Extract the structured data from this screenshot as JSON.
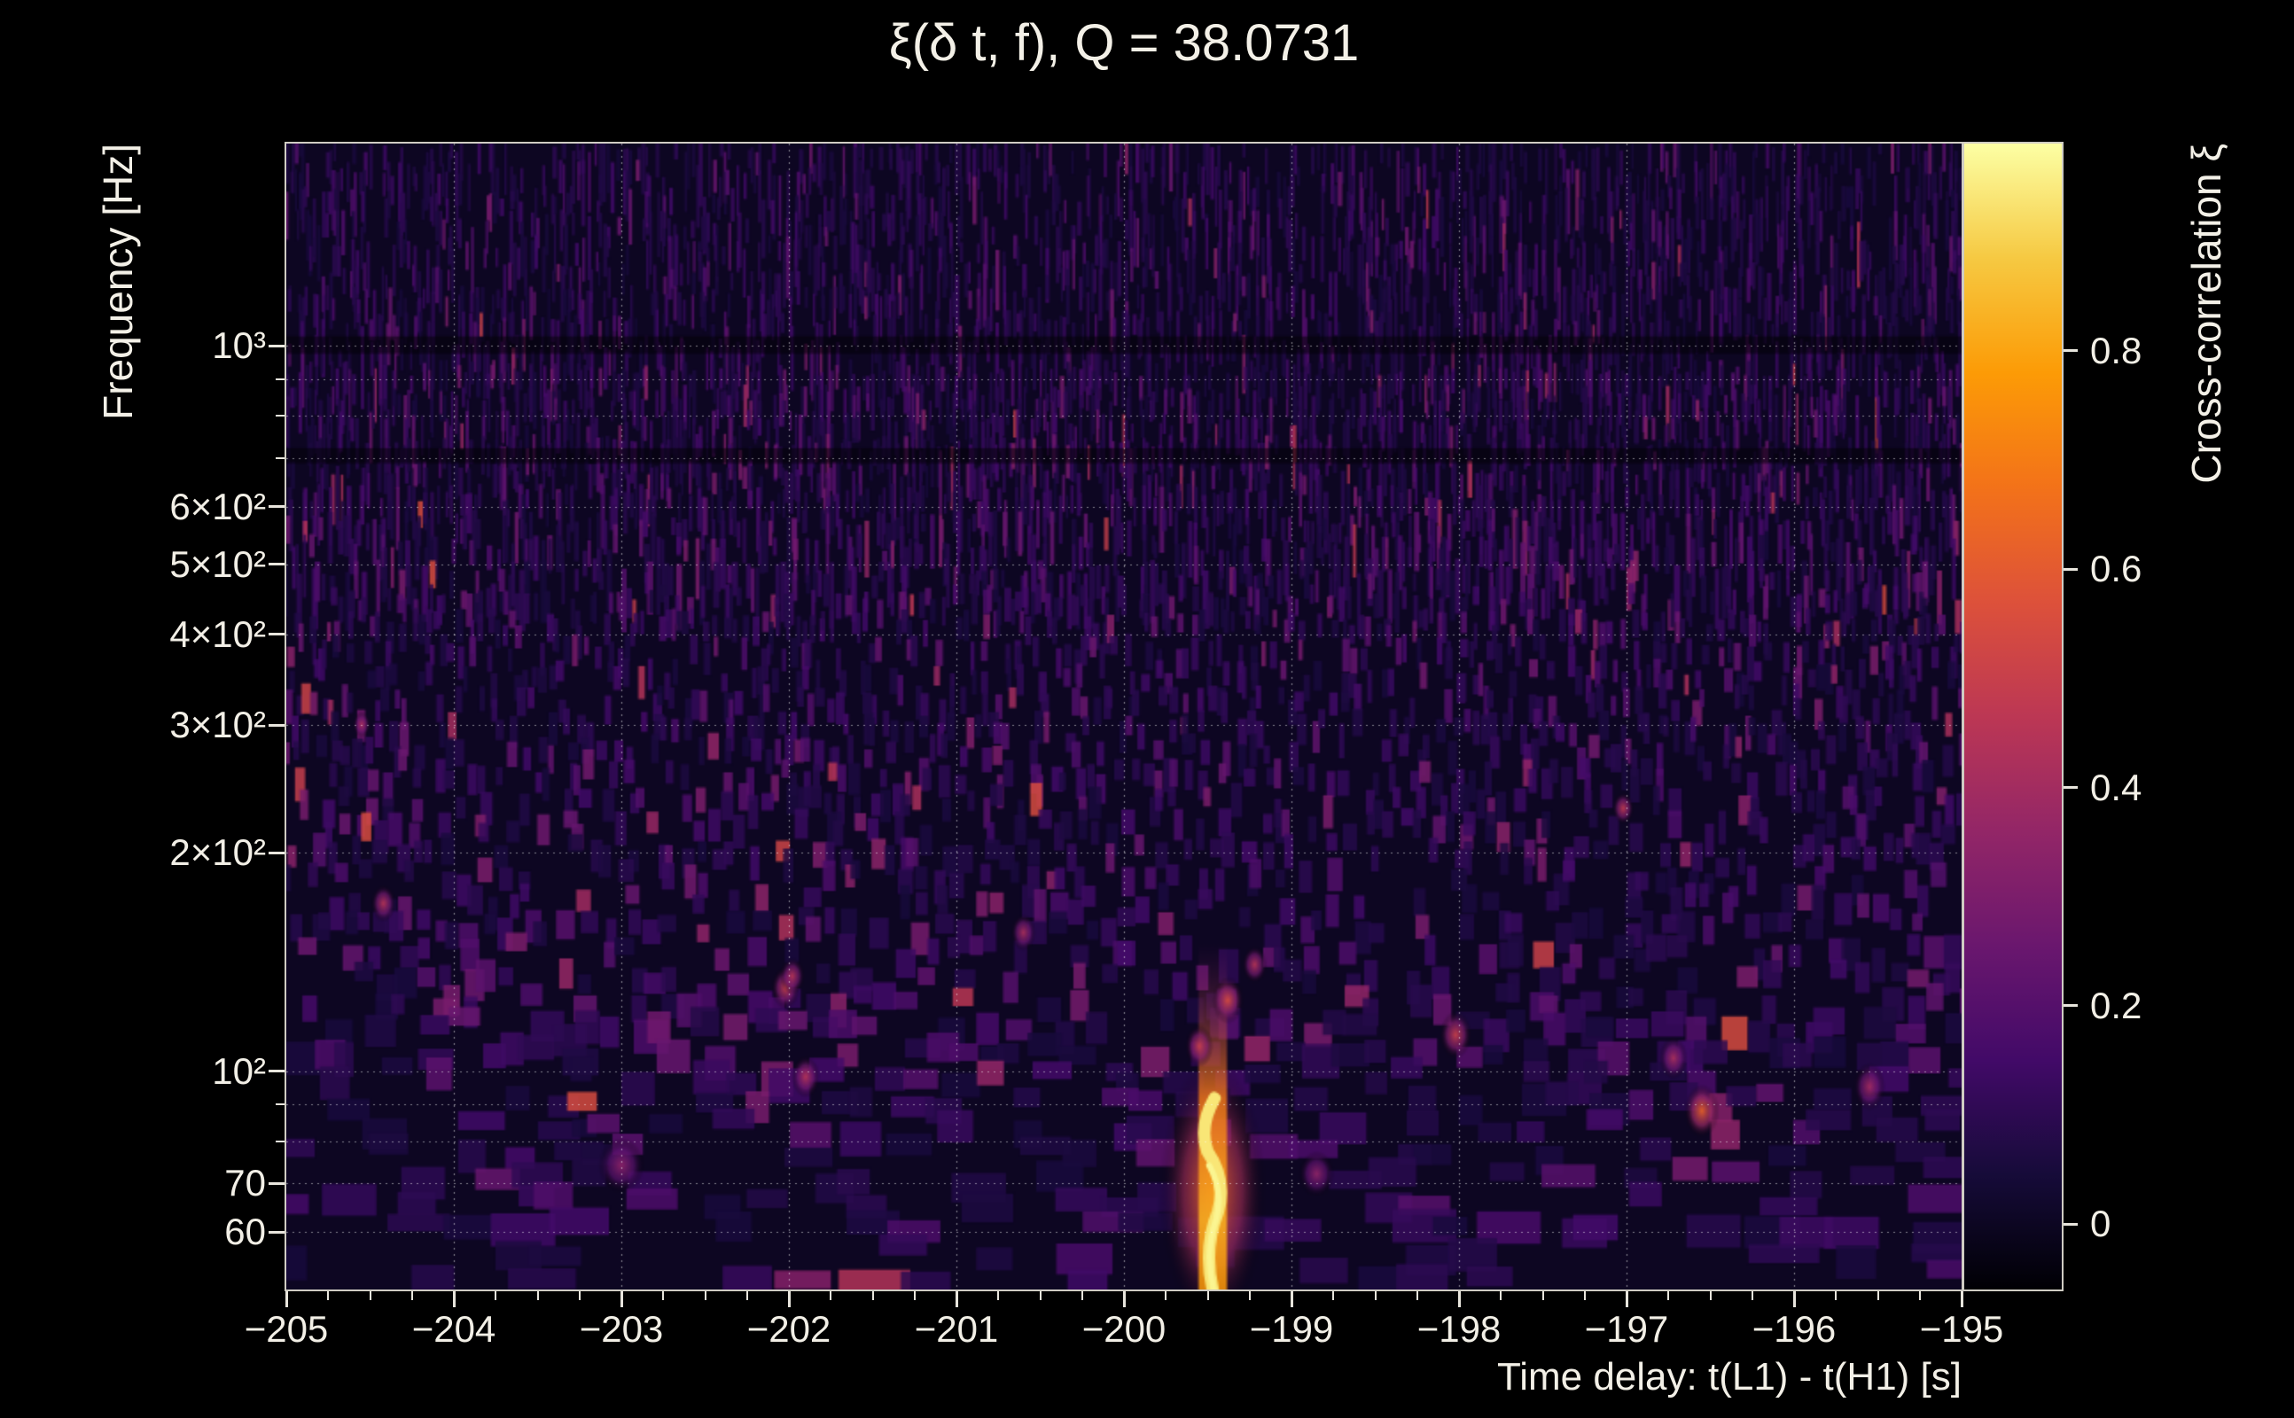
{
  "title": "ξ(δ t, f), Q = 38.0731",
  "axes": {
    "x": {
      "label": "Time delay: t(L1) - t(H1) [s]",
      "min": -205,
      "max": -195,
      "minor_step": 0.25,
      "ticks": [
        -205,
        -204,
        -203,
        -202,
        -201,
        -200,
        -199,
        -198,
        -197,
        -196,
        -195
      ],
      "tick_labels": [
        "−205",
        "−204",
        "−203",
        "−202",
        "−201",
        "−200",
        "−199",
        "−198",
        "−197",
        "−196",
        "−195"
      ]
    },
    "y": {
      "label": "Frequency [Hz]",
      "scale": "log",
      "min": 50,
      "max": 1900,
      "ticks": [
        1000,
        600,
        500,
        400,
        300,
        200,
        100,
        70,
        60
      ],
      "tick_labels": [
        "10³",
        "6×10²",
        "5×10²",
        "4×10²",
        "3×10²",
        "2×10²",
        "10²",
        "70",
        "60"
      ],
      "minor_ticks": [
        80,
        90,
        700,
        800,
        900
      ]
    }
  },
  "colorbar": {
    "label": "Cross-correlation ξ",
    "min": -0.06,
    "max": 0.99,
    "ticks": [
      0,
      0.2,
      0.4,
      0.6,
      0.8
    ],
    "tick_labels": [
      "0",
      "0.2",
      "0.4",
      "0.6",
      "0.8"
    ]
  },
  "chart_data": {
    "type": "heatmap",
    "title": "ξ(δ t, f), Q = 38.0731",
    "q_value": 38.0731,
    "xlabel": "Time delay: t(L1) - t(H1) [s]",
    "ylabel": "Frequency [Hz]",
    "xlim": [
      -205,
      -195
    ],
    "ylim": [
      50,
      1900
    ],
    "yscale": "log",
    "value_label": "Cross-correlation ξ",
    "value_range": [
      -0.06,
      0.99
    ],
    "grid": {
      "style": "dotted",
      "x_values": [
        -204,
        -203,
        -202,
        -201,
        -200,
        -199,
        -198,
        -197,
        -196
      ],
      "y_values": [
        60,
        70,
        80,
        90,
        100,
        200,
        300,
        400,
        500,
        600,
        700,
        800,
        900,
        1000
      ]
    },
    "colormap": {
      "name": "inferno",
      "stops": [
        [
          0.0,
          0,
          0,
          4
        ],
        [
          0.1,
          22,
          11,
          57
        ],
        [
          0.2,
          66,
          10,
          104
        ],
        [
          0.3,
          106,
          23,
          110
        ],
        [
          0.4,
          147,
          38,
          103
        ],
        [
          0.5,
          188,
          55,
          84
        ],
        [
          0.6,
          221,
          81,
          58
        ],
        [
          0.7,
          243,
          114,
          25
        ],
        [
          0.8,
          252,
          155,
          6
        ],
        [
          0.9,
          246,
          201,
          66
        ],
        [
          1.0,
          252,
          255,
          164
        ]
      ]
    },
    "noise": {
      "seed": 20731,
      "mean_amplitude": 0.082,
      "description": "sparse Q-transform cross-correlation noise: thin vertical streaks at high frequency, coarser blobs at low frequency, mostly dark background"
    },
    "features": [
      {
        "type": "glitch",
        "t": -199.47,
        "f_lo": 50,
        "f_hi": 150,
        "amplitude": 0.97,
        "description": "loud broadband transient, brightest (near-white) at 50–95 Hz"
      },
      {
        "t": -199.38,
        "f": 125,
        "amplitude": 0.55,
        "rx": 9
      },
      {
        "t": -199.55,
        "f": 108,
        "amplitude": 0.5,
        "rx": 8
      },
      {
        "t": -199.22,
        "f": 140,
        "amplitude": 0.45,
        "rx": 7
      },
      {
        "t": -198.85,
        "f": 72,
        "amplitude": 0.35,
        "rx": 10,
        "sy": 1.3
      },
      {
        "t": -196.55,
        "f": 88,
        "amplitude": 0.62,
        "rx": 10
      },
      {
        "t": -196.72,
        "f": 104,
        "amplitude": 0.42,
        "rx": 8
      },
      {
        "t": -198.02,
        "f": 112,
        "amplitude": 0.5,
        "rx": 9
      },
      {
        "t": -197.02,
        "f": 230,
        "amplitude": 0.48,
        "rx": 6
      },
      {
        "t": -202.02,
        "f": 130,
        "amplitude": 0.5,
        "rx": 8
      },
      {
        "t": -201.9,
        "f": 98,
        "amplitude": 0.45,
        "rx": 8
      },
      {
        "t": -201.98,
        "f": 135,
        "amplitude": 0.45,
        "rx": 7
      },
      {
        "t": -203.0,
        "f": 74,
        "amplitude": 0.34,
        "rx": 13,
        "sy": 1.2
      },
      {
        "t": -204.42,
        "f": 170,
        "amplitude": 0.45,
        "rx": 7
      },
      {
        "t": -204.55,
        "f": 300,
        "amplitude": 0.42,
        "rx": 5
      },
      {
        "t": -200.6,
        "f": 155,
        "amplitude": 0.42,
        "rx": 7
      },
      {
        "t": -195.55,
        "f": 95,
        "amplitude": 0.4,
        "rx": 9
      }
    ]
  }
}
